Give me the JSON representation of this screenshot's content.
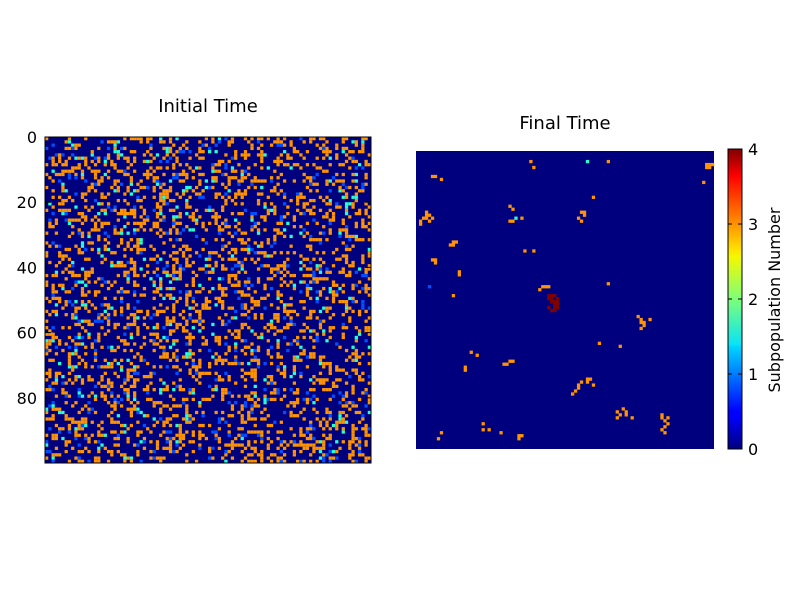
{
  "chart_data": [
    {
      "type": "heatmap",
      "title": "Initial Time",
      "grid_size": 100,
      "yticks": [
        0,
        20,
        40,
        60,
        80
      ],
      "ytick_labels": [
        "0",
        "20",
        "40",
        "60",
        "80"
      ],
      "xticks": [],
      "background_value": 0,
      "cell_value_fractions": {
        "0": 0.7,
        "1": 0.04,
        "2": 0.03,
        "3": 0.23
      },
      "grid": false
    },
    {
      "type": "heatmap",
      "title": "Final Time",
      "grid_size": 100,
      "yticks": [],
      "xticks": [],
      "background_value": 0,
      "grid": false,
      "orange_cells_value": 3,
      "orange_cells": [
        [
          4,
          97
        ],
        [
          4,
          98
        ],
        [
          4,
          99
        ],
        [
          5,
          98
        ],
        [
          5,
          97
        ],
        [
          3,
          38
        ],
        [
          5,
          39
        ],
        [
          8,
          5
        ],
        [
          8,
          6
        ],
        [
          9,
          8
        ],
        [
          3,
          64
        ],
        [
          10,
          96
        ],
        [
          15,
          59
        ],
        [
          18,
          31
        ],
        [
          19,
          32
        ],
        [
          20,
          55
        ],
        [
          20,
          56
        ],
        [
          21,
          56
        ],
        [
          22,
          54
        ],
        [
          22,
          35
        ],
        [
          23,
          31
        ],
        [
          23,
          32
        ],
        [
          23,
          55
        ],
        [
          20,
          3
        ],
        [
          21,
          3
        ],
        [
          21,
          4
        ],
        [
          22,
          2
        ],
        [
          22,
          3
        ],
        [
          22,
          5
        ],
        [
          23,
          4
        ],
        [
          24,
          1
        ],
        [
          23,
          1
        ],
        [
          30,
          13
        ],
        [
          30,
          12
        ],
        [
          31,
          11
        ],
        [
          31,
          12
        ],
        [
          33,
          39
        ],
        [
          33,
          36
        ],
        [
          36,
          5
        ],
        [
          36,
          6
        ],
        [
          37,
          6
        ],
        [
          40,
          14
        ],
        [
          41,
          14
        ],
        [
          44,
          64
        ],
        [
          45,
          43
        ],
        [
          45,
          44
        ],
        [
          45,
          42
        ],
        [
          46,
          41
        ],
        [
          48,
          12
        ],
        [
          55,
          74
        ],
        [
          56,
          75
        ],
        [
          57,
          75
        ],
        [
          57,
          76
        ],
        [
          56,
          78
        ],
        [
          58,
          76
        ],
        [
          59,
          75
        ],
        [
          64,
          61
        ],
        [
          65,
          68
        ],
        [
          67,
          18
        ],
        [
          68,
          20
        ],
        [
          70,
          31
        ],
        [
          70,
          32
        ],
        [
          71,
          30
        ],
        [
          71,
          29
        ],
        [
          72,
          16
        ],
        [
          73,
          16
        ],
        [
          76,
          57
        ],
        [
          77,
          55
        ],
        [
          78,
          54
        ],
        [
          79,
          54
        ],
        [
          80,
          53
        ],
        [
          81,
          52
        ],
        [
          76,
          58
        ],
        [
          77,
          57
        ],
        [
          78,
          59
        ],
        [
          87,
          67
        ],
        [
          88,
          68
        ],
        [
          89,
          67
        ],
        [
          87,
          70
        ],
        [
          88,
          70
        ],
        [
          89,
          72
        ],
        [
          86,
          69
        ],
        [
          88,
          82
        ],
        [
          89,
          82
        ],
        [
          90,
          83
        ],
        [
          91,
          84
        ],
        [
          92,
          83
        ],
        [
          93,
          82
        ],
        [
          94,
          83
        ],
        [
          89,
          84
        ],
        [
          91,
          22
        ],
        [
          93,
          22
        ],
        [
          93,
          24
        ],
        [
          94,
          28
        ],
        [
          95,
          34
        ],
        [
          96,
          34
        ],
        [
          95,
          35
        ],
        [
          96,
          7
        ],
        [
          94,
          8
        ]
      ],
      "red_cells_value": 4,
      "red_cells": [
        [
          48,
          44
        ],
        [
          48,
          45
        ],
        [
          48,
          46
        ],
        [
          49,
          44
        ],
        [
          49,
          45
        ],
        [
          49,
          47
        ],
        [
          50,
          45
        ],
        [
          50,
          46
        ],
        [
          50,
          47
        ],
        [
          51,
          46
        ],
        [
          51,
          47
        ],
        [
          52,
          44
        ],
        [
          52,
          46
        ],
        [
          52,
          47
        ],
        [
          53,
          45
        ],
        [
          53,
          46
        ]
      ],
      "cyan_cells": [
        [
          3,
          57
        ],
        [
          22,
          33
        ]
      ],
      "blue_cells": [
        [
          45,
          4
        ]
      ]
    }
  ],
  "colorbar": {
    "label": "Subpopulation Number",
    "ticks": [
      "0",
      "1",
      "2",
      "3",
      "4"
    ],
    "min": 0,
    "max": 4,
    "colormap": "jet"
  },
  "colors": {
    "v0": "#00007f",
    "v1": "#0050ff",
    "v2": "#29ffce",
    "v3": "#ff9400",
    "v4": "#7f0000"
  }
}
